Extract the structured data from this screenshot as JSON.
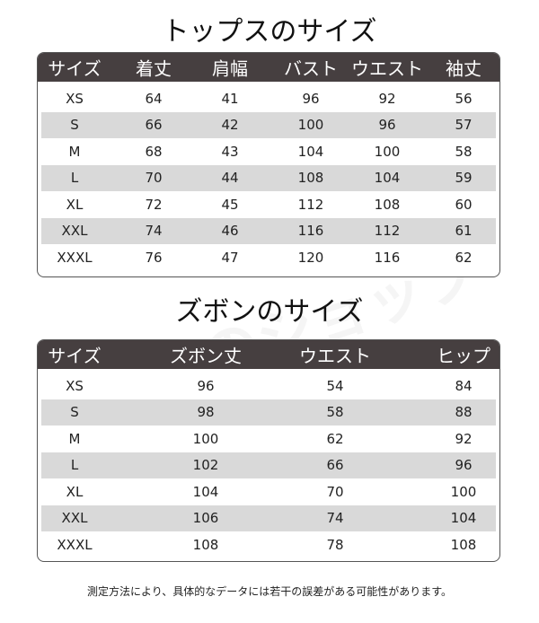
{
  "tops": {
    "title": "トップスのサイズ",
    "headers": [
      "サイズ",
      "着丈",
      "肩幅",
      "バスト",
      "ウエスト",
      "袖丈"
    ],
    "rows": [
      [
        "XS",
        "64",
        "41",
        "96",
        "92",
        "56"
      ],
      [
        "S",
        "66",
        "42",
        "100",
        "96",
        "57"
      ],
      [
        "M",
        "68",
        "43",
        "104",
        "100",
        "58"
      ],
      [
        "L",
        "70",
        "44",
        "108",
        "104",
        "59"
      ],
      [
        "XL",
        "72",
        "45",
        "112",
        "108",
        "60"
      ],
      [
        "XXL",
        "74",
        "46",
        "116",
        "112",
        "61"
      ],
      [
        "XXXL",
        "76",
        "47",
        "120",
        "116",
        "62"
      ]
    ]
  },
  "pants": {
    "title": "ズボンのサイズ",
    "headers": [
      "サイズ",
      "ズボン丈",
      "ウエスト",
      "ヒップ"
    ],
    "rows": [
      [
        "XS",
        "96",
        "54",
        "84"
      ],
      [
        "S",
        "98",
        "58",
        "88"
      ],
      [
        "M",
        "100",
        "62",
        "92"
      ],
      [
        "L",
        "102",
        "66",
        "96"
      ],
      [
        "XL",
        "104",
        "70",
        "100"
      ],
      [
        "XXL",
        "106",
        "74",
        "104"
      ],
      [
        "XXXL",
        "108",
        "78",
        "108"
      ]
    ]
  },
  "watermark": "ぼくらのショップ",
  "note": "測定方法により、具体的なデータには若干の誤差がある可能性があります。",
  "colors": {
    "header_bg": "#463f40",
    "alt_row": "#d9d9d9"
  }
}
